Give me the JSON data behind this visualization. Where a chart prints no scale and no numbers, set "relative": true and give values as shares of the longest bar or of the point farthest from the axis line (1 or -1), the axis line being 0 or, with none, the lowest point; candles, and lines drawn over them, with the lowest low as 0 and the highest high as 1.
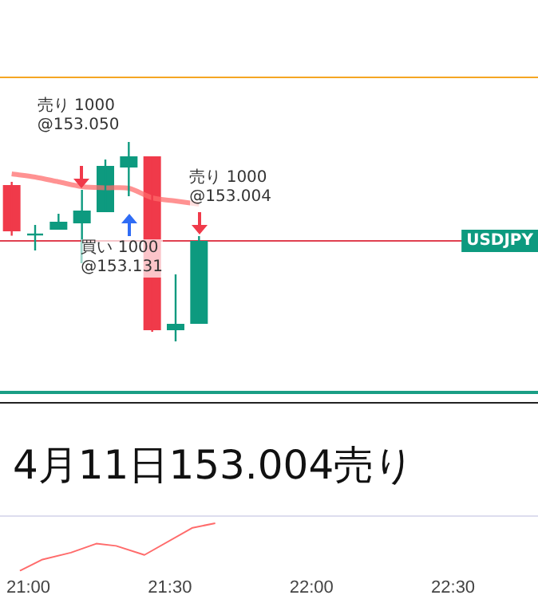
{
  "chart_data": [
    {
      "type": "candlestick",
      "relative": true,
      "tick_labels": false,
      "grid": false,
      "legend": false,
      "categories": [
        null,
        null,
        null,
        null,
        null,
        null,
        null,
        null,
        null
      ],
      "ohlc": [
        [
          0.784,
          0.8,
          0.53,
          0.552
        ],
        [
          0.536,
          0.584,
          0.456,
          0.536
        ],
        [
          0.56,
          0.64,
          0.56,
          0.6
        ],
        [
          0.592,
          0.76,
          0.392,
          0.656
        ],
        [
          0.648,
          0.912,
          0.648,
          0.88
        ],
        [
          0.872,
          1,
          0.728,
          0.928
        ],
        [
          0.928,
          0.928,
          0.048,
          0.056
        ],
        [
          0.056,
          0.336,
          0,
          0.088
        ],
        [
          0.088,
          0.528,
          0.088,
          0.504
        ]
      ],
      "series": [
        {
          "type": "line",
          "color": "#ff6b6b",
          "values": [
            0.84,
            0.824,
            0.8,
            0.776,
            0.77,
            0.768,
            0.72,
            0.704,
            0.688
          ]
        }
      ],
      "ref_lines": [
        {
          "axis": "y",
          "value": 0.504,
          "label": "USDJPY",
          "color": "#e0404f"
        }
      ],
      "annotations": [
        "売り 1000\n@153.050",
        "買い 1000\n@153.131",
        "売り 1000\n@153.004"
      ]
    },
    {
      "type": "line",
      "relative": true,
      "title": "4月11日153.004売り",
      "grid": false,
      "legend": false,
      "tick_labels": "x",
      "xlim": [
        20.9,
        22.8
      ],
      "xticks": [
        {
          "value": 21,
          "label": "21:00"
        },
        {
          "value": 21.5,
          "label": "21:30"
        },
        {
          "value": 22,
          "label": "22:00"
        },
        {
          "value": 22.5,
          "label": "22:30"
        }
      ],
      "series": [
        {
          "color": "#ff6b6b",
          "x": [
            20.97,
            21.05,
            21.15,
            21.24,
            21.31,
            21.41,
            21.58,
            21.66
          ],
          "values": [
            0,
            0.238,
            0.381,
            0.571,
            0.524,
            0.333,
            0.905,
            1
          ]
        }
      ]
    }
  ]
}
